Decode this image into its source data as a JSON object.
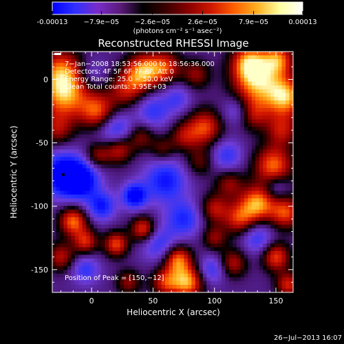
{
  "colorbar": {
    "ticks": [
      "-0.00013",
      "−7.9e−05",
      "−2.6e−05",
      "2.6e−05",
      "7.9e−05",
      "0.00013"
    ],
    "tick_values": [
      -0.00013,
      -7.9e-05,
      -2.6e-05,
      2.6e-05,
      7.9e-05,
      0.00013
    ],
    "range": [
      -0.00013,
      0.00013
    ],
    "units": "(photons cm⁻² s⁻¹ asec⁻²)",
    "colors": [
      "#0000ff",
      "#3030ff",
      "#7a2cc8",
      "#5a1a7a",
      "#000000",
      "#3a0000",
      "#8a0000",
      "#d01800",
      "#ff6000",
      "#ffb020",
      "#ffffa0",
      "#ffffff"
    ]
  },
  "chart_data": {
    "type": "heatmap",
    "title": "Reconstructed RHESSI Image",
    "xlabel": "Heliocentric X (arcsec)",
    "ylabel": "Heliocentric Y (arcsec)",
    "xlim": [
      -32,
      164
    ],
    "ylim": [
      -168,
      22
    ],
    "xticks": [
      0,
      50,
      100,
      150
    ],
    "yticks": [
      0,
      -50,
      -100,
      -150
    ],
    "annotations": [
      "7−Jan−2008 18:53:56.000 to 18:56:36.000",
      "Detectors: 4F 5F 6F 7F 8F, Att 0",
      "Energy Range: 25.0 − 50.0 keV",
      "Clean    Total counts: 3.95E+03"
    ],
    "peak_label": "Position of Peak = [150,−12]",
    "peak_position": [
      150,
      -12
    ],
    "min_marker": [
      -23,
      -75
    ],
    "blobs": [
      {
        "x": -22,
        "y": -12,
        "v": 1.0,
        "s": 14
      },
      {
        "x": -25,
        "y": 8,
        "v": 0.7,
        "s": 12
      },
      {
        "x": 5,
        "y": -25,
        "v": 0.8,
        "s": 10
      },
      {
        "x": 28,
        "y": -8,
        "v": 0.6,
        "s": 10
      },
      {
        "x": 42,
        "y": 6,
        "v": 1.0,
        "s": 10
      },
      {
        "x": 60,
        "y": 10,
        "v": 0.7,
        "s": 9
      },
      {
        "x": 85,
        "y": 4,
        "v": 0.5,
        "s": 8
      },
      {
        "x": 92,
        "y": -38,
        "v": 0.8,
        "s": 10
      },
      {
        "x": 75,
        "y": -45,
        "v": 0.5,
        "s": 8
      },
      {
        "x": 135,
        "y": -2,
        "v": 1.0,
        "s": 14
      },
      {
        "x": 158,
        "y": -14,
        "v": 1.0,
        "s": 11
      },
      {
        "x": 128,
        "y": 14,
        "v": 0.8,
        "s": 10
      },
      {
        "x": 152,
        "y": 16,
        "v": 0.8,
        "s": 9
      },
      {
        "x": 132,
        "y": -28,
        "v": 0.5,
        "s": 9
      },
      {
        "x": 155,
        "y": -40,
        "v": 0.6,
        "s": 9
      },
      {
        "x": 148,
        "y": -68,
        "v": 0.9,
        "s": 11
      },
      {
        "x": 135,
        "y": -98,
        "v": 1.0,
        "s": 10
      },
      {
        "x": 158,
        "y": -105,
        "v": 0.8,
        "s": 9
      },
      {
        "x": 120,
        "y": -110,
        "v": 0.7,
        "s": 9
      },
      {
        "x": 112,
        "y": -82,
        "v": 0.5,
        "s": 8
      },
      {
        "x": 100,
        "y": -102,
        "v": 0.6,
        "s": 8
      },
      {
        "x": 88,
        "y": -65,
        "v": 0.4,
        "s": 8
      },
      {
        "x": 58,
        "y": -55,
        "v": 0.4,
        "s": 7
      },
      {
        "x": 40,
        "y": -45,
        "v": 0.5,
        "s": 8
      },
      {
        "x": 22,
        "y": -55,
        "v": 0.7,
        "s": 8
      },
      {
        "x": 5,
        "y": -60,
        "v": 0.5,
        "s": 7
      },
      {
        "x": -28,
        "y": -40,
        "v": 0.5,
        "s": 9
      },
      {
        "x": -15,
        "y": -112,
        "v": 0.9,
        "s": 8
      },
      {
        "x": -5,
        "y": -128,
        "v": 0.7,
        "s": 7
      },
      {
        "x": 20,
        "y": -130,
        "v": 0.8,
        "s": 7
      },
      {
        "x": 42,
        "y": -118,
        "v": 0.8,
        "s": 7
      },
      {
        "x": -25,
        "y": -140,
        "v": 0.6,
        "s": 8
      },
      {
        "x": 70,
        "y": -142,
        "v": 0.9,
        "s": 8
      },
      {
        "x": 78,
        "y": -160,
        "v": 1.0,
        "s": 9
      },
      {
        "x": 60,
        "y": -160,
        "v": 0.7,
        "s": 8
      },
      {
        "x": 115,
        "y": -145,
        "v": 0.6,
        "s": 8
      },
      {
        "x": 150,
        "y": -140,
        "v": 0.8,
        "s": 8
      },
      {
        "x": 160,
        "y": -162,
        "v": 0.7,
        "s": 7
      },
      {
        "x": 30,
        "y": -160,
        "v": 0.5,
        "s": 7
      },
      {
        "x": 100,
        "y": -125,
        "v": 0.5,
        "s": 7
      },
      {
        "x": -23,
        "y": -75,
        "v": -1.0,
        "s": 12
      },
      {
        "x": -8,
        "y": -80,
        "v": -0.8,
        "s": 10
      },
      {
        "x": 35,
        "y": -92,
        "v": -0.9,
        "s": 7
      },
      {
        "x": 8,
        "y": -100,
        "v": -0.7,
        "s": 8
      },
      {
        "x": 60,
        "y": -80,
        "v": -0.7,
        "s": 12
      },
      {
        "x": 75,
        "y": -110,
        "v": -0.6,
        "s": 10
      },
      {
        "x": 55,
        "y": -130,
        "v": -0.5,
        "s": 10
      },
      {
        "x": 20,
        "y": -40,
        "v": -0.6,
        "s": 10
      },
      {
        "x": 50,
        "y": -25,
        "v": -0.5,
        "s": 10
      },
      {
        "x": 110,
        "y": -60,
        "v": -0.5,
        "s": 9
      },
      {
        "x": 118,
        "y": -25,
        "v": -0.4,
        "s": 8
      },
      {
        "x": 98,
        "y": -150,
        "v": -0.5,
        "s": 8
      },
      {
        "x": 135,
        "y": -125,
        "v": -0.5,
        "s": 9
      },
      {
        "x": -5,
        "y": -150,
        "v": -0.5,
        "s": 8
      },
      {
        "x": 70,
        "y": -15,
        "v": -0.4,
        "s": 8
      },
      {
        "x": 150,
        "y": -85,
        "v": -0.4,
        "s": 7
      },
      {
        "x": 0,
        "y": 5,
        "v": -0.3,
        "s": 8
      }
    ]
  },
  "footer": {
    "timestamp": "26−Jul−2013 16:07"
  }
}
